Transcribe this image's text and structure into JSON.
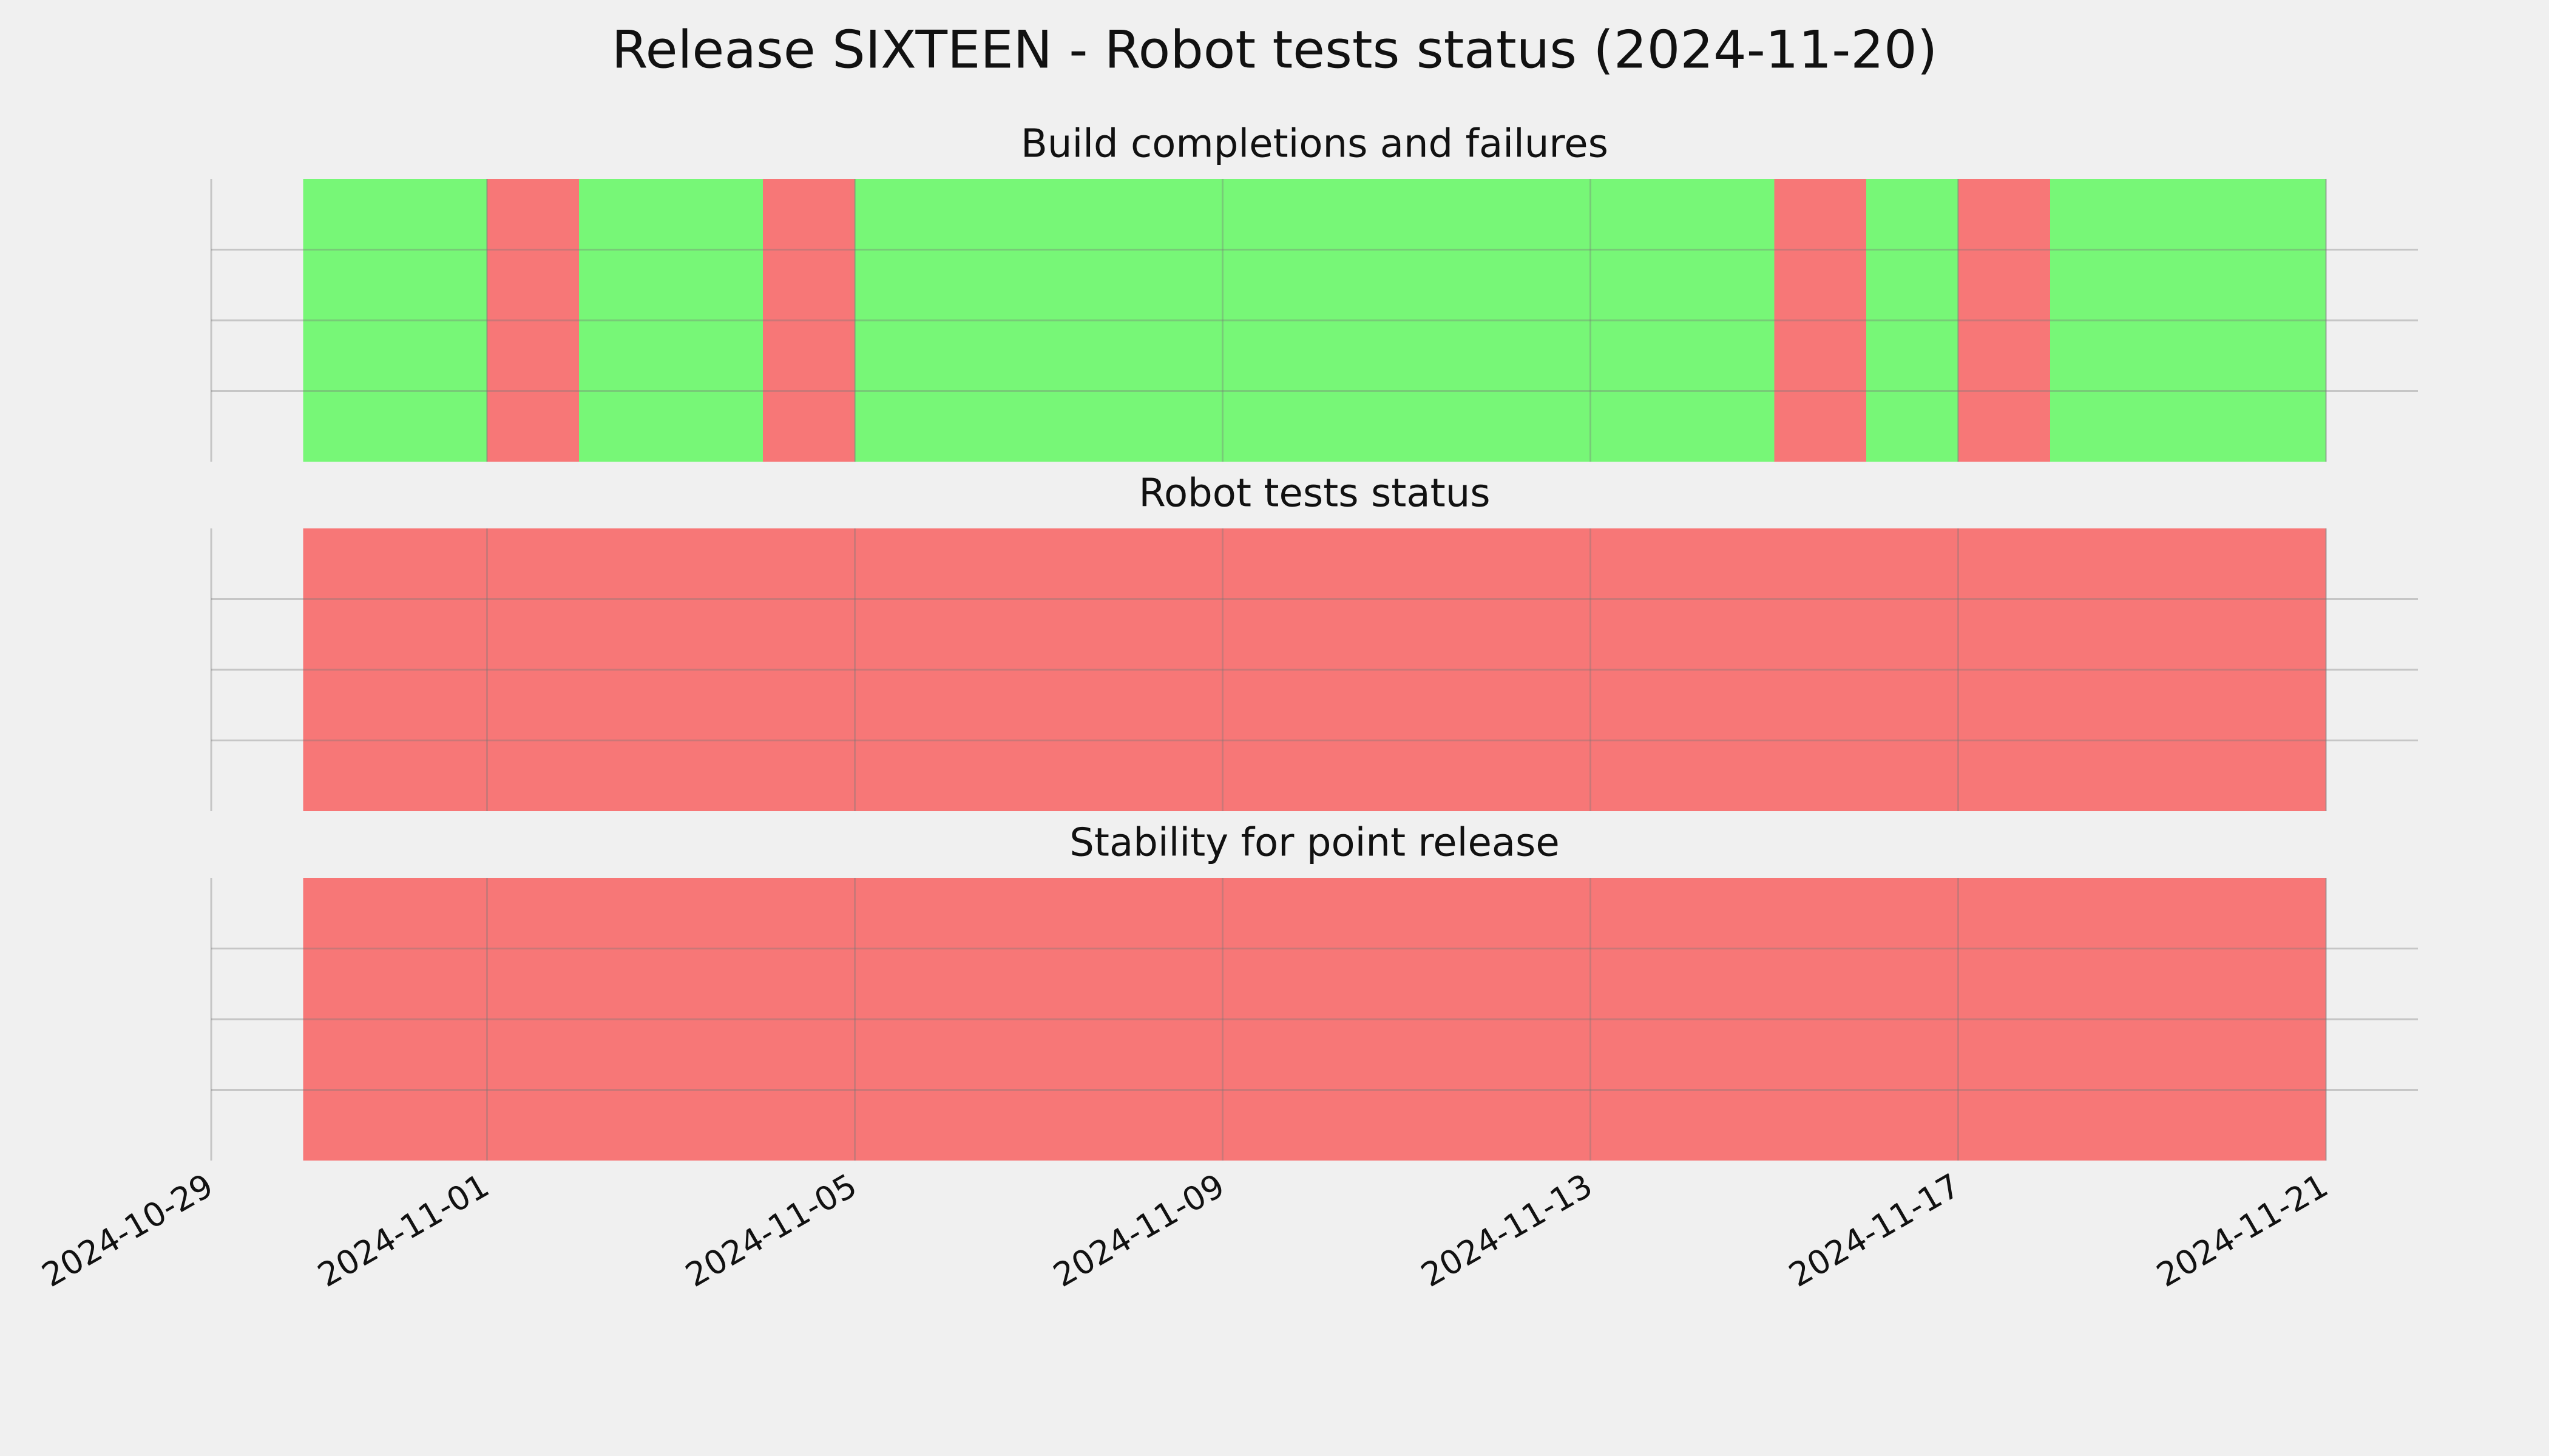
{
  "title": "Release SIXTEEN - Robot tests status (2024-11-20)",
  "chart_data": [
    {
      "type": "timeline",
      "title": "Build completions and failures",
      "segments": [
        {
          "start": "2024-10-30",
          "end": "2024-11-01",
          "color": "#77f777"
        },
        {
          "start": "2024-11-01",
          "end": "2024-11-02",
          "color": "#f77777"
        },
        {
          "start": "2024-11-02",
          "end": "2024-11-04",
          "color": "#77f777"
        },
        {
          "start": "2024-11-04",
          "end": "2024-11-05",
          "color": "#f77777"
        },
        {
          "start": "2024-11-05",
          "end": "2024-11-15",
          "color": "#77f777"
        },
        {
          "start": "2024-11-15",
          "end": "2024-11-16",
          "color": "#f77777"
        },
        {
          "start": "2024-11-16",
          "end": "2024-11-17",
          "color": "#77f777"
        },
        {
          "start": "2024-11-17",
          "end": "2024-11-18",
          "color": "#f77777"
        },
        {
          "start": "2024-11-18",
          "end": "2024-11-21",
          "color": "#77f777"
        }
      ],
      "xlim": [
        "2024-10-29",
        "2024-11-22"
      ],
      "xticks": [
        "2024-10-29",
        "2024-11-01",
        "2024-11-05",
        "2024-11-09",
        "2024-11-13",
        "2024-11-17",
        "2024-11-21"
      ],
      "ylim": [
        0,
        1
      ],
      "yticks": [
        0.25,
        0.5,
        0.75
      ],
      "grid": true
    },
    {
      "type": "timeline",
      "title": "Robot tests status",
      "segments": [
        {
          "start": "2024-10-30",
          "end": "2024-11-21",
          "color": "#f77777"
        }
      ],
      "xlim": [
        "2024-10-29",
        "2024-11-22"
      ],
      "xticks": [
        "2024-10-29",
        "2024-11-01",
        "2024-11-05",
        "2024-11-09",
        "2024-11-13",
        "2024-11-17",
        "2024-11-21"
      ],
      "ylim": [
        0,
        1
      ],
      "yticks": [
        0.25,
        0.5,
        0.75
      ],
      "grid": true
    },
    {
      "type": "timeline",
      "title": "Stability for point release",
      "segments": [
        {
          "start": "2024-10-30",
          "end": "2024-11-21",
          "color": "#f77777"
        }
      ],
      "xlim": [
        "2024-10-29",
        "2024-11-22"
      ],
      "xticks": [
        "2024-10-29",
        "2024-11-01",
        "2024-11-05",
        "2024-11-09",
        "2024-11-13",
        "2024-11-17",
        "2024-11-21"
      ],
      "ylim": [
        0,
        1
      ],
      "yticks": [
        0.25,
        0.5,
        0.75
      ],
      "grid": true,
      "show_xtick_labels": true
    }
  ]
}
